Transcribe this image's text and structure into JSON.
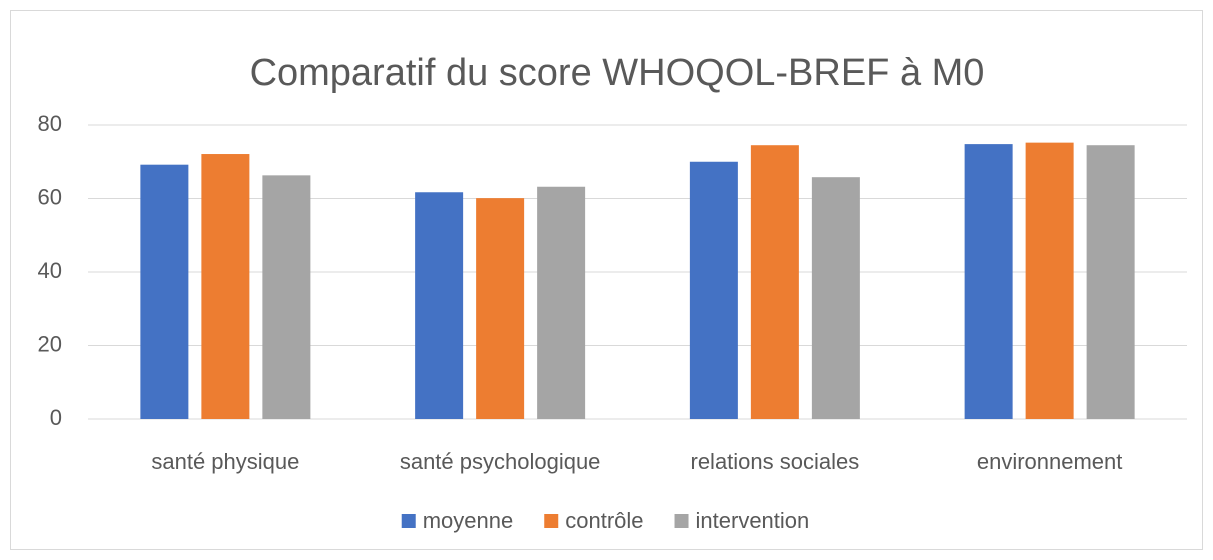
{
  "chart_data": {
    "type": "bar",
    "title": "Comparatif du score WHOQOL-BREF à M0",
    "categories": [
      "santé physique",
      "santé psychologique",
      "relations sociales",
      "environnement"
    ],
    "series": [
      {
        "name": "moyenne",
        "color": "#4472c4",
        "values": [
          69.2,
          61.7,
          70.0,
          74.8
        ]
      },
      {
        "name": "contrôle",
        "color": "#ed7d31",
        "values": [
          72.1,
          60.1,
          74.5,
          75.2
        ]
      },
      {
        "name": "intervention",
        "color": "#a5a5a5",
        "values": [
          66.3,
          63.2,
          65.8,
          74.5
        ]
      }
    ],
    "ylim": [
      0,
      80
    ],
    "yticks": [
      0,
      20,
      40,
      60,
      80
    ],
    "grid": true,
    "legend": "bottom"
  }
}
